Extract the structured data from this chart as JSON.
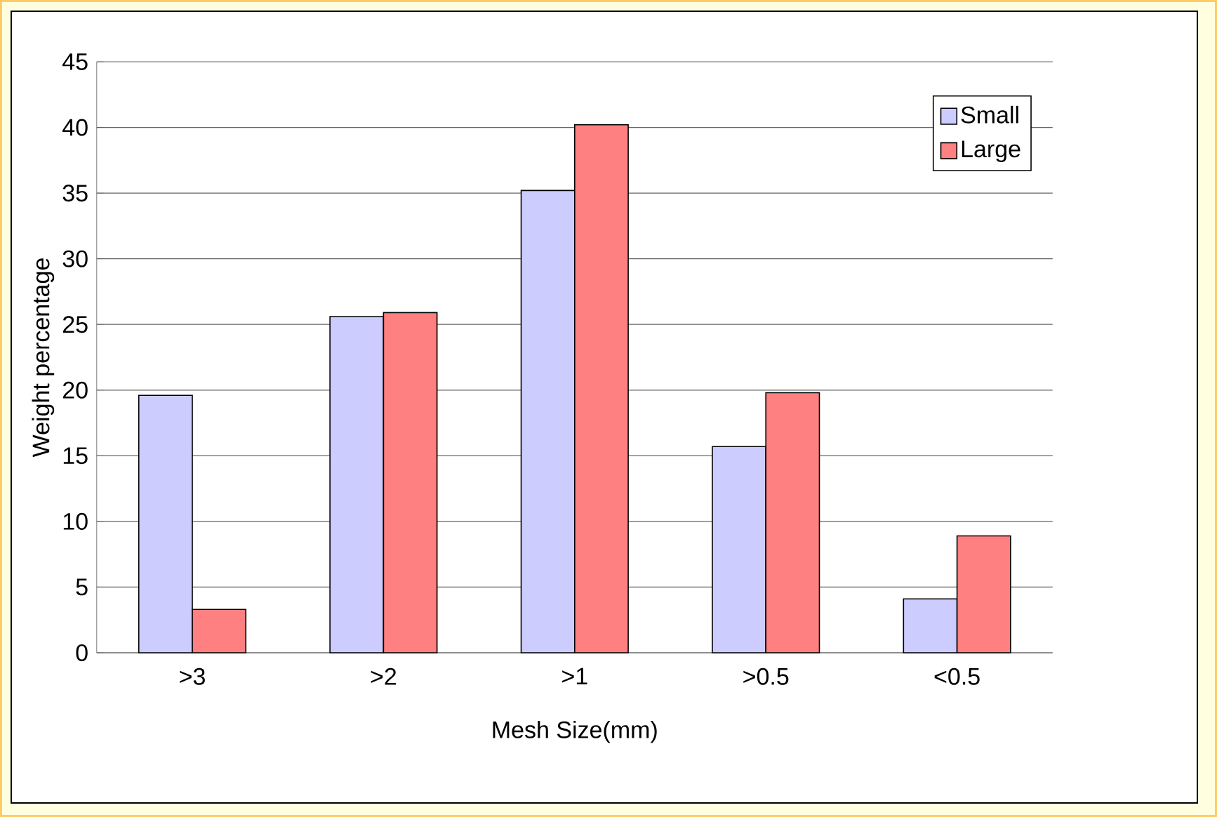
{
  "chart_data": {
    "type": "bar",
    "xlabel": "Mesh Size(mm)",
    "ylabel": "Weight percentage",
    "categories": [
      ">3",
      ">2",
      ">1",
      ">0.5",
      "<0.5"
    ],
    "series": [
      {
        "name": "Small",
        "color": "#ccccff",
        "values": [
          19.6,
          25.6,
          35.2,
          15.7,
          4.1
        ]
      },
      {
        "name": "Large",
        "color": "#ff8080",
        "values": [
          3.3,
          25.9,
          40.2,
          19.8,
          8.9
        ]
      }
    ],
    "ylim": [
      0,
      45
    ],
    "yticks": [
      0,
      5,
      10,
      15,
      20,
      25,
      30,
      35,
      40,
      45
    ],
    "grid": "y",
    "legend": "top right"
  }
}
